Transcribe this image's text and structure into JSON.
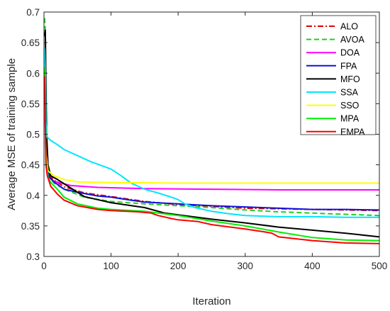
{
  "chart_data": {
    "type": "line",
    "title": "",
    "xlabel": "Iteration",
    "ylabel": "Average MSE of training sample",
    "xlim": [
      0,
      500
    ],
    "ylim": [
      0.3,
      0.7
    ],
    "xticks": [
      0,
      100,
      200,
      300,
      400,
      500
    ],
    "yticks": [
      0.3,
      0.35,
      0.4,
      0.45,
      0.5,
      0.55,
      0.6,
      0.65,
      0.7
    ],
    "xtick_labels": [
      "0",
      "100",
      "200",
      "300",
      "400",
      "500"
    ],
    "ytick_labels": [
      "0.3",
      "0.35",
      "0.4",
      "0.45",
      "0.5",
      "0.55",
      "0.6",
      "0.65",
      "0.7"
    ],
    "grid": false,
    "legend_position": "top-right",
    "series": [
      {
        "name": "ALO",
        "color": "#e00000",
        "dash": "dashdot",
        "points": [
          [
            1,
            0.6
          ],
          [
            2,
            0.57
          ],
          [
            3,
            0.5
          ],
          [
            5,
            0.45
          ],
          [
            8,
            0.432
          ],
          [
            15,
            0.425
          ],
          [
            30,
            0.414
          ],
          [
            60,
            0.404
          ],
          [
            100,
            0.398
          ],
          [
            150,
            0.39
          ],
          [
            200,
            0.385
          ],
          [
            250,
            0.382
          ],
          [
            300,
            0.379
          ],
          [
            350,
            0.378
          ],
          [
            400,
            0.377
          ],
          [
            450,
            0.376
          ],
          [
            500,
            0.375
          ]
        ]
      },
      {
        "name": "AVOA",
        "color": "#22cc22",
        "dash": "dash",
        "points": [
          [
            1,
            0.69
          ],
          [
            2,
            0.67
          ],
          [
            3,
            0.55
          ],
          [
            5,
            0.46
          ],
          [
            8,
            0.43
          ],
          [
            15,
            0.42
          ],
          [
            30,
            0.41
          ],
          [
            60,
            0.397
          ],
          [
            100,
            0.39
          ],
          [
            150,
            0.386
          ],
          [
            200,
            0.383
          ],
          [
            250,
            0.38
          ],
          [
            300,
            0.376
          ],
          [
            350,
            0.373
          ],
          [
            400,
            0.371
          ],
          [
            450,
            0.369
          ],
          [
            500,
            0.367
          ]
        ]
      },
      {
        "name": "DOA",
        "color": "#ff00ff",
        "dash": "solid",
        "points": [
          [
            1,
            0.55
          ],
          [
            3,
            0.46
          ],
          [
            6,
            0.43
          ],
          [
            15,
            0.423
          ],
          [
            40,
            0.416
          ],
          [
            80,
            0.413
          ],
          [
            150,
            0.411
          ],
          [
            250,
            0.41
          ],
          [
            350,
            0.409
          ],
          [
            500,
            0.409
          ]
        ]
      },
      {
        "name": "FPA",
        "color": "#1010dd",
        "dash": "solid",
        "points": [
          [
            1,
            0.58
          ],
          [
            3,
            0.5
          ],
          [
            5,
            0.45
          ],
          [
            8,
            0.43
          ],
          [
            15,
            0.422
          ],
          [
            30,
            0.41
          ],
          [
            50,
            0.405
          ],
          [
            80,
            0.399
          ],
          [
            100,
            0.397
          ],
          [
            130,
            0.392
          ],
          [
            150,
            0.389
          ],
          [
            200,
            0.386
          ],
          [
            250,
            0.383
          ],
          [
            300,
            0.381
          ],
          [
            350,
            0.379
          ],
          [
            400,
            0.377
          ],
          [
            450,
            0.377
          ],
          [
            500,
            0.376
          ]
        ]
      },
      {
        "name": "MFO",
        "color": "#000000",
        "dash": "solid",
        "points": [
          [
            1,
            0.66
          ],
          [
            2,
            0.67
          ],
          [
            3,
            0.58
          ],
          [
            4,
            0.5
          ],
          [
            6,
            0.45
          ],
          [
            10,
            0.432
          ],
          [
            20,
            0.426
          ],
          [
            40,
            0.412
          ],
          [
            60,
            0.398
          ],
          [
            80,
            0.393
          ],
          [
            100,
            0.388
          ],
          [
            150,
            0.38
          ],
          [
            180,
            0.371
          ],
          [
            200,
            0.368
          ],
          [
            250,
            0.361
          ],
          [
            300,
            0.355
          ],
          [
            350,
            0.348
          ],
          [
            400,
            0.343
          ],
          [
            450,
            0.338
          ],
          [
            500,
            0.332
          ]
        ]
      },
      {
        "name": "SSA",
        "color": "#00e5ff",
        "dash": "solid",
        "points": [
          [
            1,
            0.64
          ],
          [
            2,
            0.6
          ],
          [
            3,
            0.52
          ],
          [
            5,
            0.495
          ],
          [
            10,
            0.49
          ],
          [
            20,
            0.483
          ],
          [
            30,
            0.475
          ],
          [
            50,
            0.465
          ],
          [
            70,
            0.455
          ],
          [
            90,
            0.447
          ],
          [
            100,
            0.443
          ],
          [
            115,
            0.432
          ],
          [
            130,
            0.42
          ],
          [
            150,
            0.41
          ],
          [
            170,
            0.404
          ],
          [
            190,
            0.397
          ],
          [
            200,
            0.393
          ],
          [
            210,
            0.386
          ],
          [
            225,
            0.38
          ],
          [
            250,
            0.374
          ],
          [
            275,
            0.37
          ],
          [
            300,
            0.367
          ],
          [
            350,
            0.365
          ],
          [
            400,
            0.365
          ],
          [
            450,
            0.364
          ],
          [
            500,
            0.364
          ]
        ]
      },
      {
        "name": "SSO",
        "color": "#ffff00",
        "dash": "solid",
        "points": [
          [
            1,
            0.58
          ],
          [
            3,
            0.47
          ],
          [
            6,
            0.44
          ],
          [
            15,
            0.432
          ],
          [
            30,
            0.426
          ],
          [
            50,
            0.422
          ],
          [
            100,
            0.421
          ],
          [
            200,
            0.42
          ],
          [
            300,
            0.42
          ],
          [
            400,
            0.42
          ],
          [
            500,
            0.42
          ]
        ]
      },
      {
        "name": "MPA",
        "color": "#00ee00",
        "dash": "solid",
        "points": [
          [
            1,
            0.61
          ],
          [
            2,
            0.55
          ],
          [
            3,
            0.46
          ],
          [
            6,
            0.43
          ],
          [
            10,
            0.421
          ],
          [
            20,
            0.41
          ],
          [
            30,
            0.397
          ],
          [
            50,
            0.386
          ],
          [
            80,
            0.379
          ],
          [
            100,
            0.377
          ],
          [
            150,
            0.374
          ],
          [
            200,
            0.367
          ],
          [
            250,
            0.358
          ],
          [
            300,
            0.35
          ],
          [
            350,
            0.34
          ],
          [
            400,
            0.331
          ],
          [
            450,
            0.327
          ],
          [
            500,
            0.326
          ]
        ]
      },
      {
        "name": "EMPA",
        "color": "#ff0000",
        "dash": "solid",
        "points": [
          [
            1,
            0.595
          ],
          [
            2,
            0.52
          ],
          [
            3,
            0.45
          ],
          [
            5,
            0.432
          ],
          [
            10,
            0.415
          ],
          [
            20,
            0.402
          ],
          [
            30,
            0.392
          ],
          [
            50,
            0.383
          ],
          [
            80,
            0.377
          ],
          [
            100,
            0.375
          ],
          [
            140,
            0.373
          ],
          [
            160,
            0.371
          ],
          [
            170,
            0.367
          ],
          [
            190,
            0.362
          ],
          [
            200,
            0.36
          ],
          [
            230,
            0.357
          ],
          [
            250,
            0.352
          ],
          [
            300,
            0.345
          ],
          [
            330,
            0.34
          ],
          [
            340,
            0.338
          ],
          [
            350,
            0.332
          ],
          [
            400,
            0.326
          ],
          [
            450,
            0.322
          ],
          [
            500,
            0.321
          ]
        ]
      }
    ]
  }
}
